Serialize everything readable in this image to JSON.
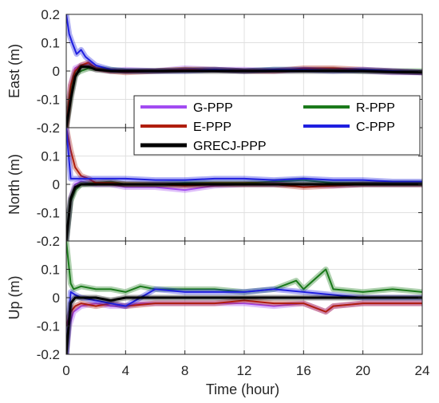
{
  "chart_data": {
    "type": "line",
    "xlabel": "Time (hour)",
    "x_ticks": [
      0,
      4,
      8,
      12,
      16,
      20,
      24
    ],
    "xlim": [
      0,
      24
    ],
    "grid": true,
    "legend_position": "upper-right of top panel, overlapping",
    "series_meta": [
      {
        "name": "G-PPP",
        "color": "#a24bf2"
      },
      {
        "name": "R-PPP",
        "color": "#1b7a1b"
      },
      {
        "name": "E-PPP",
        "color": "#b01e0e"
      },
      {
        "name": "C-PPP",
        "color": "#1f1fe0"
      },
      {
        "name": "GRECJ-PPP",
        "color": "#000000"
      }
    ],
    "panels": [
      {
        "ylabel": "East (m)",
        "ylim": [
          -0.2,
          0.2
        ],
        "y_ticks": [
          -0.2,
          -0.1,
          0,
          0.1,
          0.2
        ],
        "y_tick_labels": [
          "-0.2",
          "-0.1",
          "0",
          "0.1",
          "0.2"
        ],
        "series": [
          {
            "name": "G-PPP",
            "x": [
              0,
              0.3,
              0.6,
              1,
              1.5,
              2,
              3,
              4,
              6,
              8,
              10,
              12,
              14,
              16,
              18,
              20,
              22,
              24
            ],
            "y": [
              -0.2,
              -0.05,
              0.01,
              0.02,
              0.025,
              0.01,
              0.0,
              0.005,
              0.0,
              0.01,
              0.005,
              0.005,
              0.0,
              0.005,
              0.005,
              0.0,
              -0.005,
              -0.005
            ]
          },
          {
            "name": "R-PPP",
            "x": [
              0,
              0.3,
              0.6,
              1,
              1.5,
              2,
              3,
              4,
              6,
              8,
              10,
              12,
              14,
              16,
              18,
              20,
              22,
              24
            ],
            "y": [
              -0.2,
              -0.08,
              -0.01,
              0.0,
              0.01,
              0.01,
              0.005,
              0.0,
              0.0,
              0.005,
              0.005,
              0.0,
              0.005,
              0.005,
              0.005,
              0.0,
              0.0,
              0.0
            ]
          },
          {
            "name": "E-PPP",
            "x": [
              0,
              0.3,
              0.6,
              1,
              1.5,
              2,
              3,
              4,
              6,
              8,
              10,
              12,
              14,
              16,
              18,
              20,
              22,
              24
            ],
            "y": [
              -0.2,
              -0.05,
              0.0,
              0.02,
              0.03,
              0.01,
              0.0,
              -0.005,
              0.0,
              0.005,
              0.005,
              0.0,
              0.0,
              0.01,
              0.01,
              0.005,
              0.0,
              -0.005
            ]
          },
          {
            "name": "C-PPP",
            "x": [
              0,
              0.2,
              0.4,
              0.7,
              1,
              1.3,
              2,
              3,
              4,
              6,
              8,
              10,
              12,
              14,
              16,
              18,
              20,
              22,
              24
            ],
            "y": [
              0.2,
              0.13,
              0.1,
              0.06,
              0.075,
              0.05,
              0.02,
              0.005,
              0.0,
              0.0,
              0.0,
              0.005,
              0.0,
              0.005,
              0.005,
              0.0,
              0.005,
              0.0,
              -0.005
            ]
          },
          {
            "name": "GRECJ-PPP",
            "x": [
              0,
              0.3,
              0.6,
              1,
              1.5,
              2,
              3,
              4,
              6,
              8,
              10,
              12,
              14,
              16,
              18,
              20,
              22,
              24
            ],
            "y": [
              -0.2,
              -0.1,
              -0.02,
              0.015,
              0.015,
              0.005,
              0.0,
              0.0,
              0.0,
              0.0,
              0.0,
              0.0,
              0.0,
              0.0,
              0.0,
              0.0,
              -0.003,
              -0.005
            ]
          }
        ]
      },
      {
        "ylabel": "North (m)",
        "ylim": [
          -0.2,
          0.2
        ],
        "y_ticks": [
          -0.2,
          -0.1,
          0,
          0.1
        ],
        "y_tick_labels": [
          "-0.2",
          "-0.1",
          "0",
          "0.1"
        ],
        "series": [
          {
            "name": "G-PPP",
            "x": [
              0,
              0.3,
              0.6,
              1,
              2,
              3,
              4,
              6,
              8,
              10,
              12,
              14,
              16,
              18,
              20,
              22,
              24
            ],
            "y": [
              -0.2,
              -0.05,
              0.0,
              0.01,
              0.0,
              0.0,
              -0.01,
              -0.01,
              -0.02,
              -0.005,
              0.0,
              0.0,
              0.0,
              -0.005,
              0.0,
              0.0,
              0.0
            ]
          },
          {
            "name": "R-PPP",
            "x": [
              0,
              0.3,
              0.6,
              1,
              2,
              3,
              4,
              6,
              8,
              10,
              12,
              14,
              16,
              18,
              20,
              22,
              24
            ],
            "y": [
              -0.2,
              -0.06,
              -0.02,
              0.0,
              0.005,
              0.01,
              0.0,
              0.0,
              0.005,
              0.005,
              0.005,
              0.01,
              0.015,
              0.005,
              0.005,
              0.005,
              0.005
            ]
          },
          {
            "name": "E-PPP",
            "x": [
              0,
              0.3,
              0.6,
              1,
              1.5,
              2,
              3,
              4,
              6,
              8,
              10,
              12,
              14,
              16,
              18,
              20,
              22,
              24
            ],
            "y": [
              0.2,
              0.12,
              0.06,
              0.03,
              0.02,
              0.005,
              0.005,
              0.0,
              0.0,
              -0.005,
              0.0,
              0.0,
              0.0,
              -0.01,
              -0.005,
              0.0,
              0.0,
              0.0
            ]
          },
          {
            "name": "C-PPP",
            "x": [
              0,
              0.3,
              0.6,
              1,
              2,
              3,
              4,
              6,
              8,
              10,
              12,
              14,
              16,
              18,
              20,
              22,
              24
            ],
            "y": [
              0.2,
              0.02,
              0.02,
              0.02,
              0.02,
              0.02,
              0.02,
              0.015,
              0.015,
              0.02,
              0.02,
              0.015,
              0.02,
              0.015,
              0.015,
              0.01,
              0.01
            ]
          },
          {
            "name": "GRECJ-PPP",
            "x": [
              0,
              0.3,
              0.6,
              1,
              2,
              3,
              4,
              6,
              8,
              10,
              12,
              14,
              16,
              18,
              20,
              22,
              24
            ],
            "y": [
              -0.2,
              -0.05,
              -0.01,
              0.0,
              0.0,
              0.0,
              0.0,
              0.0,
              0.0,
              0.0,
              0.0,
              0.0,
              0.0,
              0.0,
              0.0,
              0.0,
              0.0
            ]
          }
        ]
      },
      {
        "ylabel": "Up (m)",
        "ylim": [
          -0.2,
          0.2
        ],
        "y_ticks": [
          -0.2,
          -0.1,
          0,
          0.1
        ],
        "y_tick_labels": [
          "-0.2",
          "-0.1",
          "0",
          "0.1"
        ],
        "series": [
          {
            "name": "G-PPP",
            "x": [
              0,
              0.2,
              0.5,
              1,
              2,
              3,
              4,
              5,
              6,
              8,
              10,
              12,
              14,
              16,
              17.5,
              18,
              20,
              22,
              24
            ],
            "y": [
              -0.2,
              -0.1,
              -0.05,
              -0.03,
              -0.02,
              -0.03,
              -0.03,
              -0.02,
              -0.02,
              -0.02,
              -0.02,
              -0.02,
              -0.03,
              -0.02,
              -0.05,
              -0.03,
              -0.02,
              -0.02,
              -0.02
            ]
          },
          {
            "name": "R-PPP",
            "x": [
              0,
              0.3,
              0.5,
              1,
              2,
              3,
              4,
              5,
              6,
              8,
              10,
              12,
              14,
              15.5,
              16,
              17.5,
              18,
              20,
              22,
              24
            ],
            "y": [
              0.2,
              0.05,
              0.03,
              0.04,
              0.03,
              0.03,
              0.02,
              0.04,
              0.03,
              0.03,
              0.03,
              0.02,
              0.03,
              0.06,
              0.03,
              0.1,
              0.03,
              0.02,
              0.03,
              0.02
            ]
          },
          {
            "name": "E-PPP",
            "x": [
              0,
              0.3,
              0.6,
              1,
              2,
              3,
              4,
              6,
              8,
              10,
              12,
              14,
              16,
              17.5,
              18,
              20,
              22,
              24
            ],
            "y": [
              -0.1,
              -0.05,
              -0.03,
              -0.02,
              -0.03,
              -0.02,
              -0.03,
              -0.02,
              -0.02,
              -0.02,
              -0.01,
              -0.02,
              -0.02,
              -0.05,
              -0.03,
              -0.02,
              -0.02,
              -0.02
            ]
          },
          {
            "name": "C-PPP",
            "x": [
              0,
              0.3,
              0.6,
              1,
              2,
              3,
              4,
              6,
              8,
              10,
              12,
              14,
              16,
              18,
              20,
              22,
              24
            ],
            "y": [
              -0.2,
              0.02,
              0.01,
              0.0,
              -0.01,
              -0.02,
              -0.03,
              0.03,
              0.02,
              0.02,
              0.02,
              0.03,
              0.02,
              0.01,
              0.0,
              0.0,
              0.0
            ]
          },
          {
            "name": "GRECJ-PPP",
            "x": [
              0,
              0.3,
              0.6,
              1,
              2,
              3,
              4,
              6,
              8,
              10,
              12,
              14,
              16,
              18,
              20,
              22,
              24
            ],
            "y": [
              -0.2,
              -0.02,
              0.0,
              0.0,
              0.0,
              -0.01,
              0.0,
              0.0,
              0.0,
              0.0,
              0.0,
              0.0,
              0.0,
              0.0,
              0.0,
              0.0,
              0.0
            ]
          }
        ]
      }
    ]
  }
}
